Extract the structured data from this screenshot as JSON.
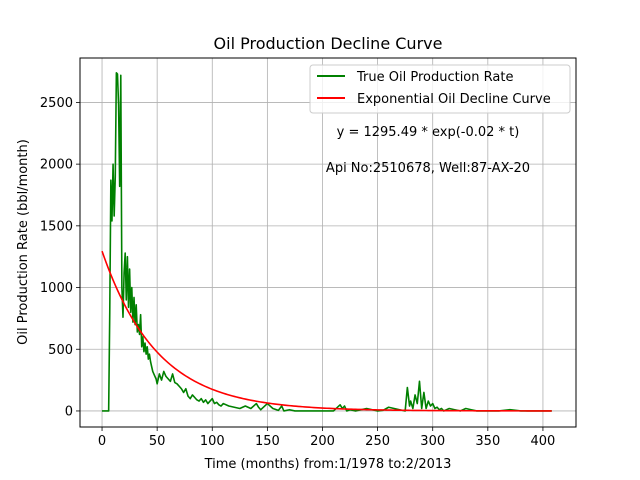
{
  "chart_data": {
    "type": "line",
    "title": "Oil Production Decline Curve",
    "xlabel": "Time (months) from:1/1978 to:2/2013",
    "ylabel": "Oil Production Rate (bbl/month)",
    "xlim": [
      -20,
      430
    ],
    "ylim": [
      -130,
      2860
    ],
    "xticks": [
      0,
      50,
      100,
      150,
      200,
      250,
      300,
      350,
      400
    ],
    "yticks": [
      0,
      500,
      1000,
      1500,
      2000,
      2500
    ],
    "grid": true,
    "legend_position": "top-right",
    "annotations": [
      "y = 1295.49 * exp(-0.02 * t)",
      "Api No:2510678, Well:87-AX-20"
    ],
    "series": [
      {
        "name": "True Oil Production Rate",
        "color": "#008000",
        "x": [
          0,
          6,
          7,
          8,
          9,
          10,
          11,
          12,
          13,
          14,
          15,
          16,
          17,
          18,
          19,
          20,
          21,
          22,
          23,
          24,
          25,
          26,
          27,
          28,
          29,
          30,
          31,
          32,
          33,
          34,
          35,
          36,
          37,
          38,
          39,
          40,
          41,
          42,
          43,
          44,
          45,
          46,
          47,
          48,
          49,
          50,
          52,
          54,
          56,
          58,
          60,
          62,
          64,
          66,
          68,
          70,
          72,
          74,
          76,
          78,
          80,
          82,
          84,
          86,
          88,
          90,
          92,
          94,
          96,
          98,
          100,
          102,
          104,
          106,
          108,
          110,
          115,
          120,
          125,
          130,
          135,
          140,
          142,
          144,
          150,
          155,
          160,
          163,
          165,
          170,
          175,
          180,
          190,
          200,
          210,
          216,
          218,
          220,
          222,
          225,
          230,
          240,
          250,
          255,
          260,
          270,
          275,
          277,
          279,
          280,
          282,
          284,
          286,
          288,
          290,
          292,
          294,
          296,
          298,
          300,
          302,
          304,
          306,
          308,
          310,
          315,
          320,
          325,
          330,
          335,
          340,
          350,
          360,
          370,
          380,
          390,
          400,
          408
        ],
        "y": [
          0,
          0,
          800,
          1870,
          1540,
          2000,
          1580,
          1900,
          2740,
          2730,
          2480,
          1820,
          2720,
          1000,
          760,
          1120,
          1280,
          900,
          1250,
          840,
          1150,
          800,
          1000,
          720,
          920,
          700,
          860,
          640,
          700,
          620,
          780,
          520,
          600,
          480,
          550,
          460,
          520,
          420,
          460,
          400,
          360,
          320,
          300,
          280,
          260,
          220,
          300,
          250,
          320,
          280,
          260,
          240,
          300,
          230,
          220,
          200,
          180,
          150,
          180,
          120,
          100,
          130,
          110,
          90,
          80,
          100,
          70,
          90,
          60,
          80,
          100,
          60,
          70,
          50,
          40,
          60,
          40,
          30,
          20,
          40,
          20,
          60,
          30,
          10,
          60,
          20,
          5,
          40,
          0,
          10,
          0,
          0,
          0,
          0,
          0,
          50,
          20,
          40,
          0,
          10,
          0,
          20,
          0,
          5,
          30,
          10,
          0,
          190,
          40,
          80,
          20,
          130,
          60,
          240,
          20,
          150,
          20,
          80,
          40,
          60,
          20,
          30,
          10,
          20,
          0,
          20,
          10,
          0,
          20,
          10,
          0,
          0,
          0,
          10,
          0,
          0,
          0,
          0
        ]
      },
      {
        "name": "Exponential Oil Decline Curve",
        "color": "#ff0000",
        "equation": "y = 1295.49 * exp(-0.02 * t)",
        "a": 1295.49,
        "b": -0.02,
        "x_start": 0,
        "x_end": 408
      }
    ]
  }
}
